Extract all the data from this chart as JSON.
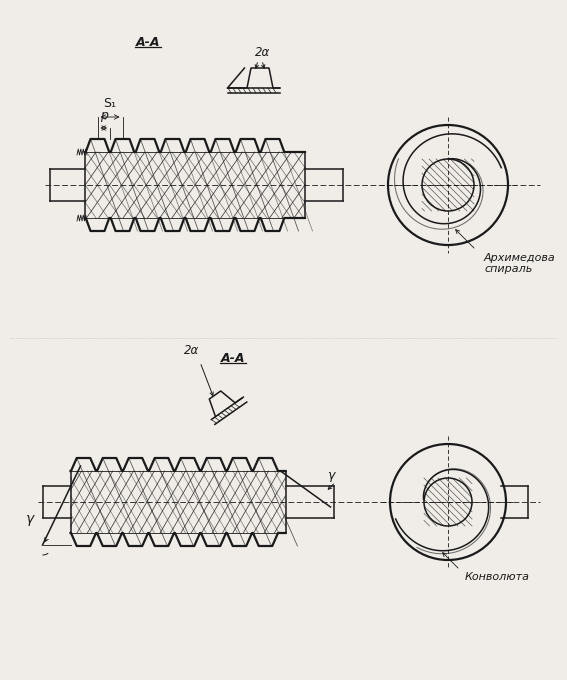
{
  "bg_color": "#f0ede8",
  "line_color": "#1a1a1a",
  "top_label_AA": "A-A",
  "top_label_2a": "2α",
  "top_label_S1": "S₁",
  "top_label_p": "p",
  "top_spiral_label_1": "Архимедова",
  "top_spiral_label_2": "спираль",
  "bot_label_AA": "A-A",
  "bot_label_2a": "2α",
  "bot_label_gamma": "γ",
  "bot_konvoluta_label": "Конволюта"
}
